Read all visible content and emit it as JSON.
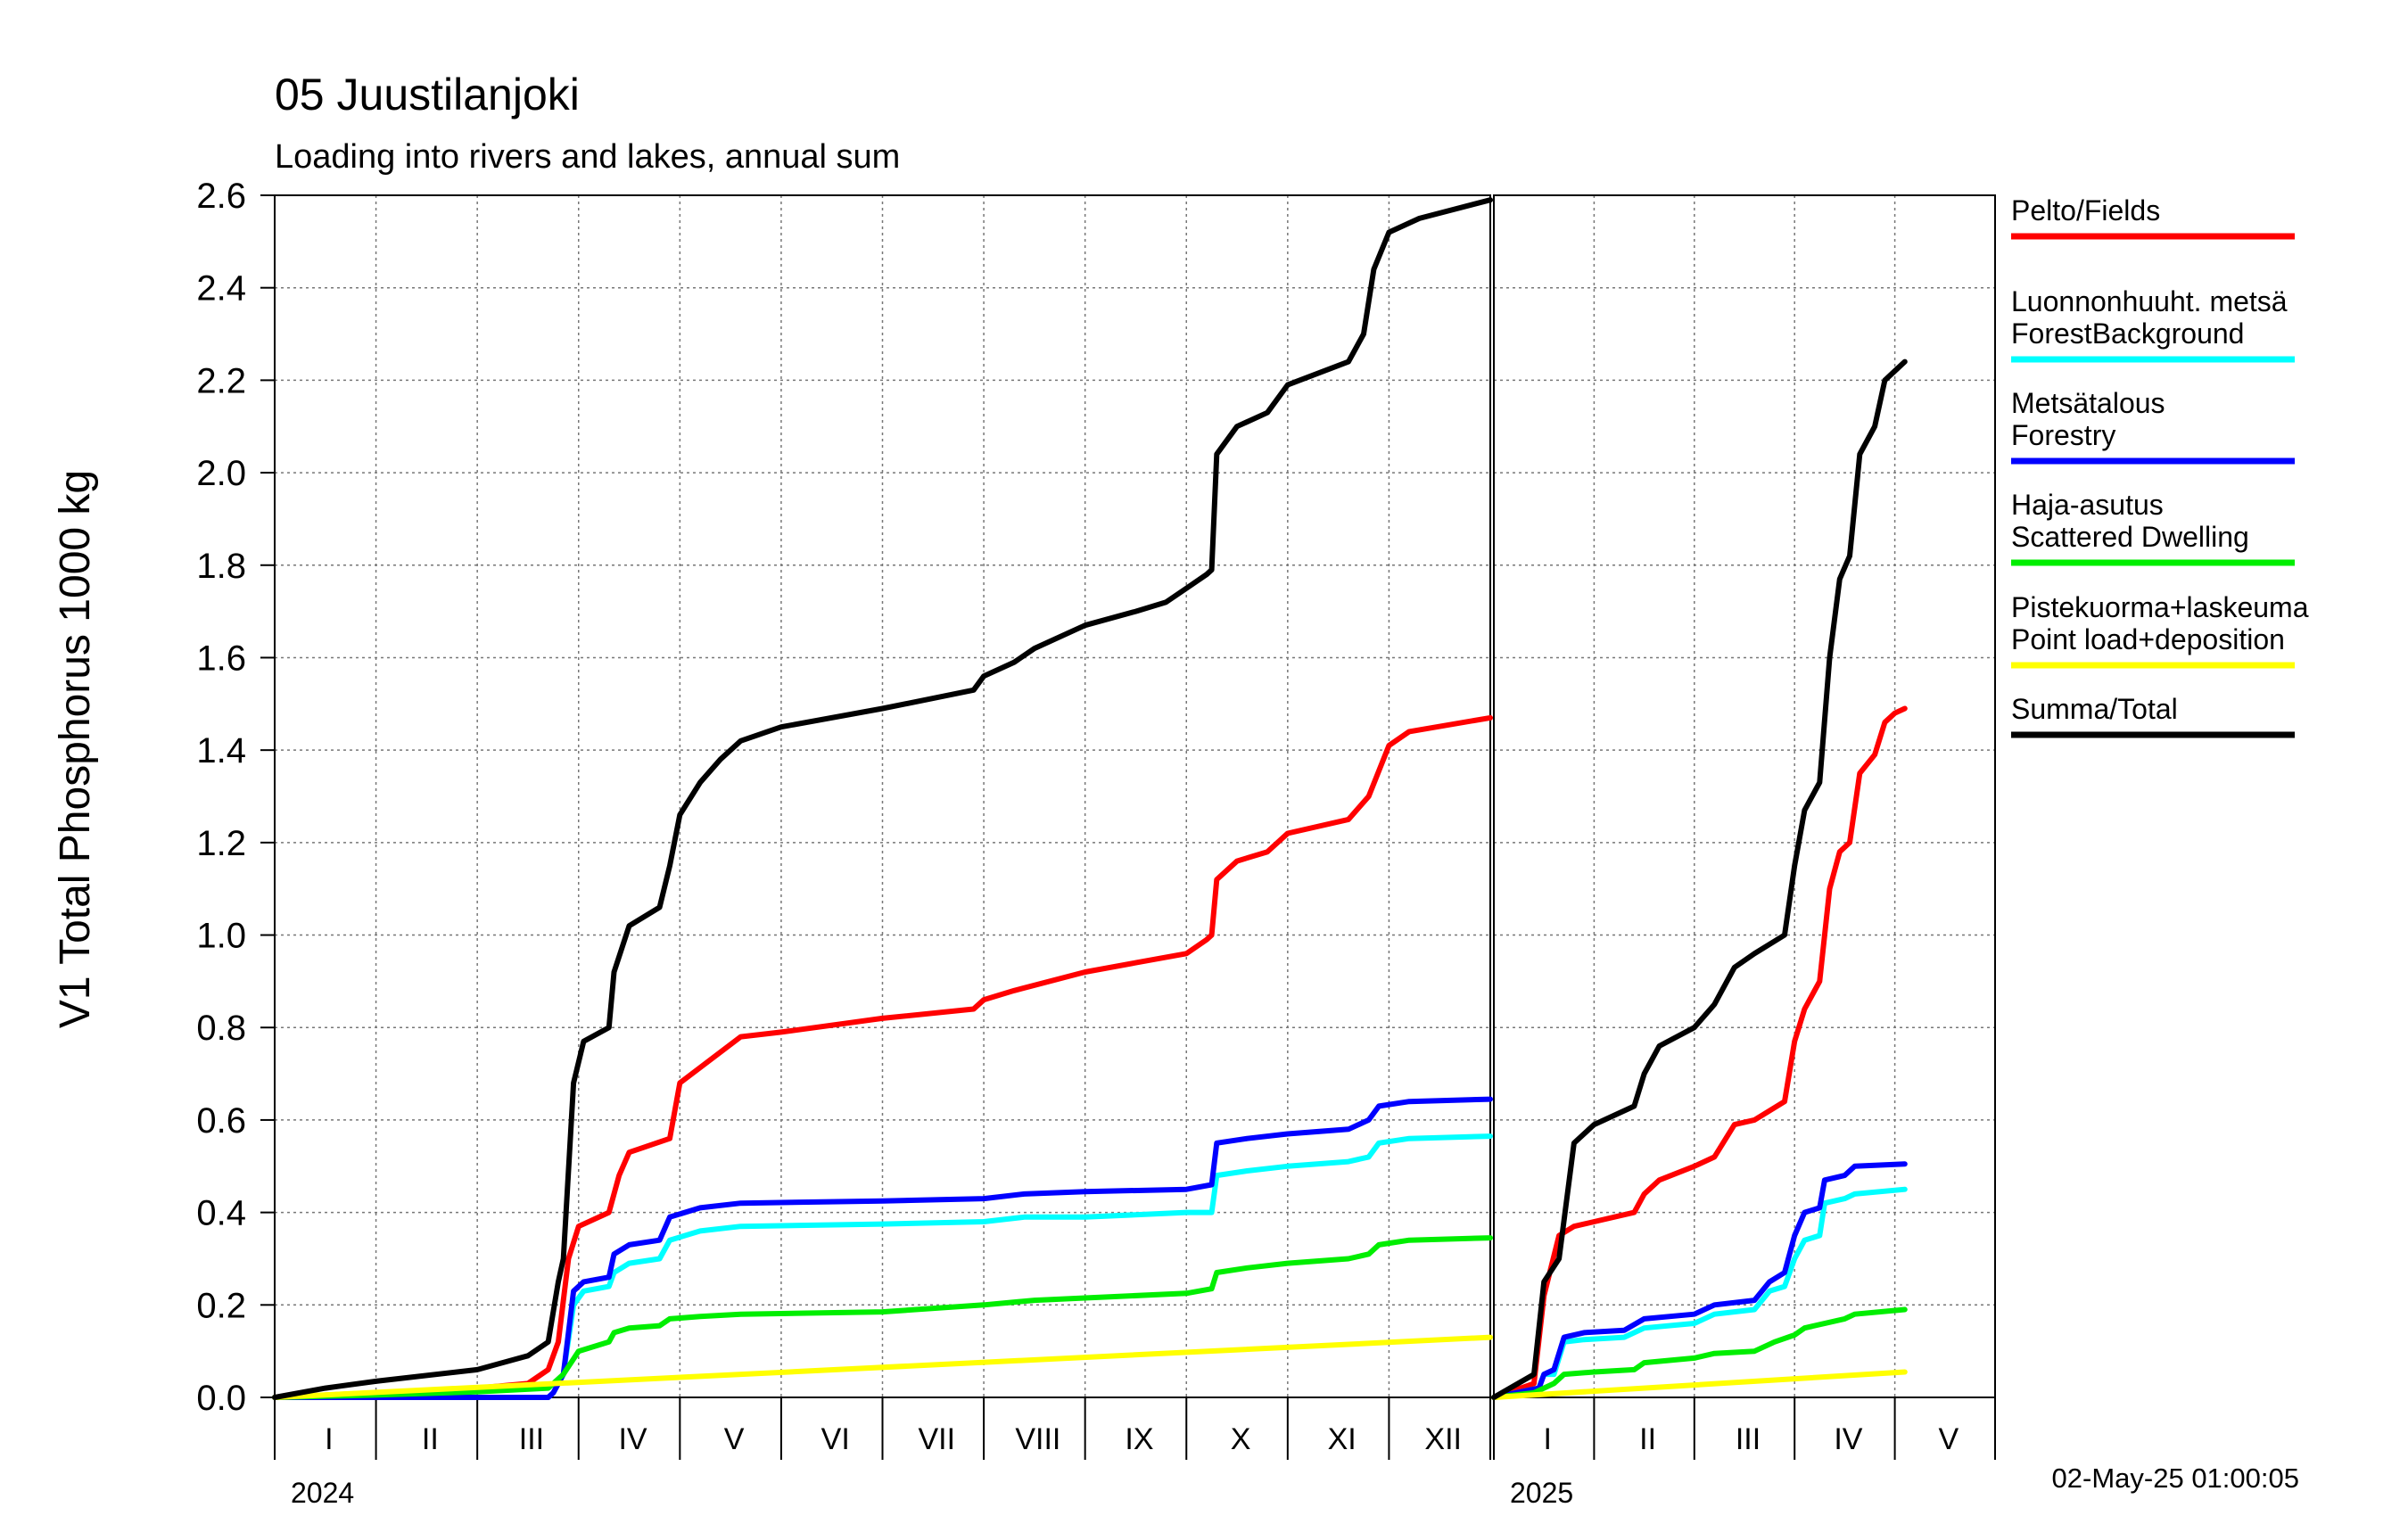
{
  "title": "05 Juustilanjoki",
  "subtitle": "Loading into rivers and lakes, annual sum",
  "timestamp": "02-May-25 01:00:05",
  "chart_data": {
    "type": "line",
    "ylabel": "V1 Total Phosphorus 1000 kg",
    "ylim": [
      0.0,
      2.6
    ],
    "yticks": [
      "0.0",
      "0.2",
      "0.4",
      "0.6",
      "0.8",
      "1.0",
      "1.2",
      "1.4",
      "1.6",
      "1.8",
      "2.0",
      "2.2",
      "2.4",
      "2.6"
    ],
    "grid": true,
    "legend_position": "right",
    "panels": [
      {
        "year": "2024",
        "months": [
          "I",
          "II",
          "III",
          "IV",
          "V",
          "VI",
          "VII",
          "VIII",
          "IX",
          "X",
          "XI",
          "XII"
        ],
        "x_unit": "month",
        "xlim": [
          0,
          12
        ]
      },
      {
        "year": "2025",
        "months": [
          "I",
          "II",
          "III",
          "IV",
          "V"
        ],
        "x_unit": "month",
        "xlim": [
          0,
          5
        ]
      }
    ],
    "series": [
      {
        "name": "Pelto/Fields",
        "color": "#ff0000",
        "points_2024": [
          [
            0,
            0
          ],
          [
            1,
            0.01
          ],
          [
            2,
            0.02
          ],
          [
            2.5,
            0.03
          ],
          [
            2.7,
            0.06
          ],
          [
            2.8,
            0.12
          ],
          [
            2.9,
            0.3
          ],
          [
            3.0,
            0.37
          ],
          [
            3.3,
            0.4
          ],
          [
            3.4,
            0.48
          ],
          [
            3.5,
            0.53
          ],
          [
            3.9,
            0.56
          ],
          [
            4.0,
            0.68
          ],
          [
            4.3,
            0.73
          ],
          [
            4.6,
            0.78
          ],
          [
            5,
            0.79
          ],
          [
            6,
            0.82
          ],
          [
            6.9,
            0.84
          ],
          [
            7.0,
            0.86
          ],
          [
            7.3,
            0.88
          ],
          [
            8,
            0.92
          ],
          [
            8.5,
            0.94
          ],
          [
            9.0,
            0.96
          ],
          [
            9.2,
            0.99
          ],
          [
            9.25,
            1.0
          ],
          [
            9.3,
            1.12
          ],
          [
            9.5,
            1.16
          ],
          [
            9.8,
            1.18
          ],
          [
            10,
            1.22
          ],
          [
            10.6,
            1.25
          ],
          [
            10.8,
            1.3
          ],
          [
            11.0,
            1.41
          ],
          [
            11.2,
            1.44
          ],
          [
            12,
            1.47
          ]
        ],
        "points_2025": [
          [
            0,
            0
          ],
          [
            0.4,
            0.03
          ],
          [
            0.5,
            0.22
          ],
          [
            0.65,
            0.35
          ],
          [
            0.8,
            0.37
          ],
          [
            1,
            0.38
          ],
          [
            1.4,
            0.4
          ],
          [
            1.5,
            0.44
          ],
          [
            1.65,
            0.47
          ],
          [
            2,
            0.5
          ],
          [
            2.2,
            0.52
          ],
          [
            2.4,
            0.59
          ],
          [
            2.6,
            0.6
          ],
          [
            2.9,
            0.64
          ],
          [
            3.0,
            0.77
          ],
          [
            3.1,
            0.84
          ],
          [
            3.25,
            0.9
          ],
          [
            3.35,
            1.1
          ],
          [
            3.45,
            1.18
          ],
          [
            3.55,
            1.2
          ],
          [
            3.65,
            1.35
          ],
          [
            3.8,
            1.39
          ],
          [
            3.9,
            1.46
          ],
          [
            4.0,
            1.48
          ],
          [
            4.1,
            1.49
          ]
        ]
      },
      {
        "name": "Luonnonhuuht. metsä\nForestBackground",
        "color": "#00ffff",
        "points_2024": [
          [
            0,
            0
          ],
          [
            2.7,
            0.0
          ],
          [
            2.75,
            0.01
          ],
          [
            2.85,
            0.05
          ],
          [
            2.95,
            0.2
          ],
          [
            3.05,
            0.23
          ],
          [
            3.3,
            0.24
          ],
          [
            3.35,
            0.27
          ],
          [
            3.5,
            0.29
          ],
          [
            3.8,
            0.3
          ],
          [
            3.9,
            0.34
          ],
          [
            4.2,
            0.36
          ],
          [
            4.6,
            0.37
          ],
          [
            6,
            0.375
          ],
          [
            7.0,
            0.38
          ],
          [
            7.4,
            0.39
          ],
          [
            8.0,
            0.39
          ],
          [
            9.0,
            0.4
          ],
          [
            9.25,
            0.4
          ],
          [
            9.3,
            0.48
          ],
          [
            9.6,
            0.49
          ],
          [
            10.0,
            0.5
          ],
          [
            10.6,
            0.51
          ],
          [
            10.8,
            0.52
          ],
          [
            10.9,
            0.55
          ],
          [
            11.2,
            0.56
          ],
          [
            12,
            0.565
          ]
        ],
        "points_2025": [
          [
            0,
            0
          ],
          [
            0.45,
            0.02
          ],
          [
            0.5,
            0.05
          ],
          [
            0.6,
            0.05
          ],
          [
            0.7,
            0.12
          ],
          [
            0.9,
            0.125
          ],
          [
            1.3,
            0.13
          ],
          [
            1.5,
            0.15
          ],
          [
            2.0,
            0.16
          ],
          [
            2.2,
            0.18
          ],
          [
            2.6,
            0.19
          ],
          [
            2.75,
            0.23
          ],
          [
            2.9,
            0.24
          ],
          [
            3.0,
            0.3
          ],
          [
            3.1,
            0.34
          ],
          [
            3.25,
            0.35
          ],
          [
            3.3,
            0.42
          ],
          [
            3.5,
            0.43
          ],
          [
            3.6,
            0.44
          ],
          [
            4.1,
            0.45
          ]
        ]
      },
      {
        "name": "Metsätalous\nForestry",
        "color": "#0000ff",
        "points_2024": [
          [
            0,
            0
          ],
          [
            2.7,
            0.0
          ],
          [
            2.75,
            0.01
          ],
          [
            2.85,
            0.05
          ],
          [
            2.95,
            0.23
          ],
          [
            3.05,
            0.25
          ],
          [
            3.3,
            0.26
          ],
          [
            3.35,
            0.31
          ],
          [
            3.5,
            0.33
          ],
          [
            3.8,
            0.34
          ],
          [
            3.9,
            0.39
          ],
          [
            4.2,
            0.41
          ],
          [
            4.6,
            0.42
          ],
          [
            6,
            0.425
          ],
          [
            7.0,
            0.43
          ],
          [
            7.4,
            0.44
          ],
          [
            8.0,
            0.445
          ],
          [
            9.0,
            0.45
          ],
          [
            9.25,
            0.46
          ],
          [
            9.3,
            0.55
          ],
          [
            9.6,
            0.56
          ],
          [
            10.0,
            0.57
          ],
          [
            10.6,
            0.58
          ],
          [
            10.8,
            0.6
          ],
          [
            10.9,
            0.63
          ],
          [
            11.2,
            0.64
          ],
          [
            12,
            0.645
          ]
        ],
        "points_2025": [
          [
            0,
            0
          ],
          [
            0.45,
            0.02
          ],
          [
            0.5,
            0.05
          ],
          [
            0.6,
            0.06
          ],
          [
            0.7,
            0.13
          ],
          [
            0.9,
            0.14
          ],
          [
            1.3,
            0.145
          ],
          [
            1.5,
            0.17
          ],
          [
            2.0,
            0.18
          ],
          [
            2.2,
            0.2
          ],
          [
            2.6,
            0.21
          ],
          [
            2.75,
            0.25
          ],
          [
            2.9,
            0.27
          ],
          [
            3.0,
            0.35
          ],
          [
            3.1,
            0.4
          ],
          [
            3.25,
            0.41
          ],
          [
            3.3,
            0.47
          ],
          [
            3.5,
            0.48
          ],
          [
            3.6,
            0.5
          ],
          [
            4.1,
            0.505
          ]
        ]
      },
      {
        "name": "Haja-asutus\nScattered Dwelling",
        "color": "#00ee00",
        "points_2024": [
          [
            0,
            0
          ],
          [
            1.0,
            0.005
          ],
          [
            2.0,
            0.012
          ],
          [
            2.7,
            0.02
          ],
          [
            2.85,
            0.05
          ],
          [
            3.0,
            0.1
          ],
          [
            3.3,
            0.12
          ],
          [
            3.35,
            0.14
          ],
          [
            3.5,
            0.15
          ],
          [
            3.8,
            0.155
          ],
          [
            3.9,
            0.17
          ],
          [
            4.2,
            0.175
          ],
          [
            4.6,
            0.18
          ],
          [
            6,
            0.185
          ],
          [
            7.0,
            0.2
          ],
          [
            7.5,
            0.21
          ],
          [
            8.0,
            0.215
          ],
          [
            9.0,
            0.225
          ],
          [
            9.25,
            0.235
          ],
          [
            9.3,
            0.27
          ],
          [
            9.6,
            0.28
          ],
          [
            10.0,
            0.29
          ],
          [
            10.6,
            0.3
          ],
          [
            10.8,
            0.31
          ],
          [
            10.9,
            0.33
          ],
          [
            11.2,
            0.34
          ],
          [
            12,
            0.345
          ]
        ],
        "points_2025": [
          [
            0,
            0
          ],
          [
            0.4,
            0.01
          ],
          [
            0.6,
            0.03
          ],
          [
            0.7,
            0.05
          ],
          [
            1.0,
            0.055
          ],
          [
            1.4,
            0.06
          ],
          [
            1.5,
            0.075
          ],
          [
            2.0,
            0.085
          ],
          [
            2.2,
            0.095
          ],
          [
            2.6,
            0.1
          ],
          [
            2.8,
            0.12
          ],
          [
            3.0,
            0.135
          ],
          [
            3.1,
            0.15
          ],
          [
            3.5,
            0.17
          ],
          [
            3.6,
            0.18
          ],
          [
            4.1,
            0.19
          ]
        ]
      },
      {
        "name": "Pistekuorma+laskeuma\nPoint load+deposition",
        "color": "#ffff00",
        "points_2024": [
          [
            0,
            0
          ],
          [
            12,
            0.13
          ]
        ],
        "points_2025": [
          [
            0,
            0
          ],
          [
            4.1,
            0.055
          ]
        ]
      },
      {
        "name": "Summa/Total",
        "color": "#000000",
        "points_2024": [
          [
            0,
            0
          ],
          [
            0.5,
            0.02
          ],
          [
            1,
            0.035
          ],
          [
            2,
            0.06
          ],
          [
            2.5,
            0.09
          ],
          [
            2.7,
            0.12
          ],
          [
            2.8,
            0.25
          ],
          [
            2.85,
            0.3
          ],
          [
            2.95,
            0.68
          ],
          [
            3.05,
            0.77
          ],
          [
            3.3,
            0.8
          ],
          [
            3.35,
            0.92
          ],
          [
            3.5,
            1.02
          ],
          [
            3.8,
            1.06
          ],
          [
            3.9,
            1.15
          ],
          [
            4.0,
            1.26
          ],
          [
            4.2,
            1.33
          ],
          [
            4.4,
            1.38
          ],
          [
            4.6,
            1.42
          ],
          [
            5,
            1.45
          ],
          [
            6,
            1.49
          ],
          [
            6.9,
            1.53
          ],
          [
            7.0,
            1.56
          ],
          [
            7.3,
            1.59
          ],
          [
            7.5,
            1.62
          ],
          [
            8.0,
            1.67
          ],
          [
            8.5,
            1.7
          ],
          [
            8.8,
            1.72
          ],
          [
            9.0,
            1.75
          ],
          [
            9.2,
            1.78
          ],
          [
            9.25,
            1.79
          ],
          [
            9.3,
            2.04
          ],
          [
            9.5,
            2.1
          ],
          [
            9.8,
            2.13
          ],
          [
            10.0,
            2.19
          ],
          [
            10.6,
            2.24
          ],
          [
            10.75,
            2.3
          ],
          [
            10.85,
            2.44
          ],
          [
            11.0,
            2.52
          ],
          [
            11.3,
            2.55
          ],
          [
            12,
            2.59
          ]
        ],
        "points_2025": [
          [
            0,
            0
          ],
          [
            0.4,
            0.05
          ],
          [
            0.5,
            0.25
          ],
          [
            0.65,
            0.3
          ],
          [
            0.8,
            0.55
          ],
          [
            1.0,
            0.59
          ],
          [
            1.4,
            0.63
          ],
          [
            1.5,
            0.7
          ],
          [
            1.65,
            0.76
          ],
          [
            2.0,
            0.8
          ],
          [
            2.2,
            0.85
          ],
          [
            2.4,
            0.93
          ],
          [
            2.6,
            0.96
          ],
          [
            2.9,
            1.0
          ],
          [
            3.0,
            1.15
          ],
          [
            3.1,
            1.27
          ],
          [
            3.25,
            1.33
          ],
          [
            3.35,
            1.6
          ],
          [
            3.45,
            1.77
          ],
          [
            3.55,
            1.82
          ],
          [
            3.65,
            2.04
          ],
          [
            3.8,
            2.1
          ],
          [
            3.9,
            2.2
          ],
          [
            4.0,
            2.22
          ],
          [
            4.1,
            2.24
          ]
        ]
      }
    ]
  }
}
